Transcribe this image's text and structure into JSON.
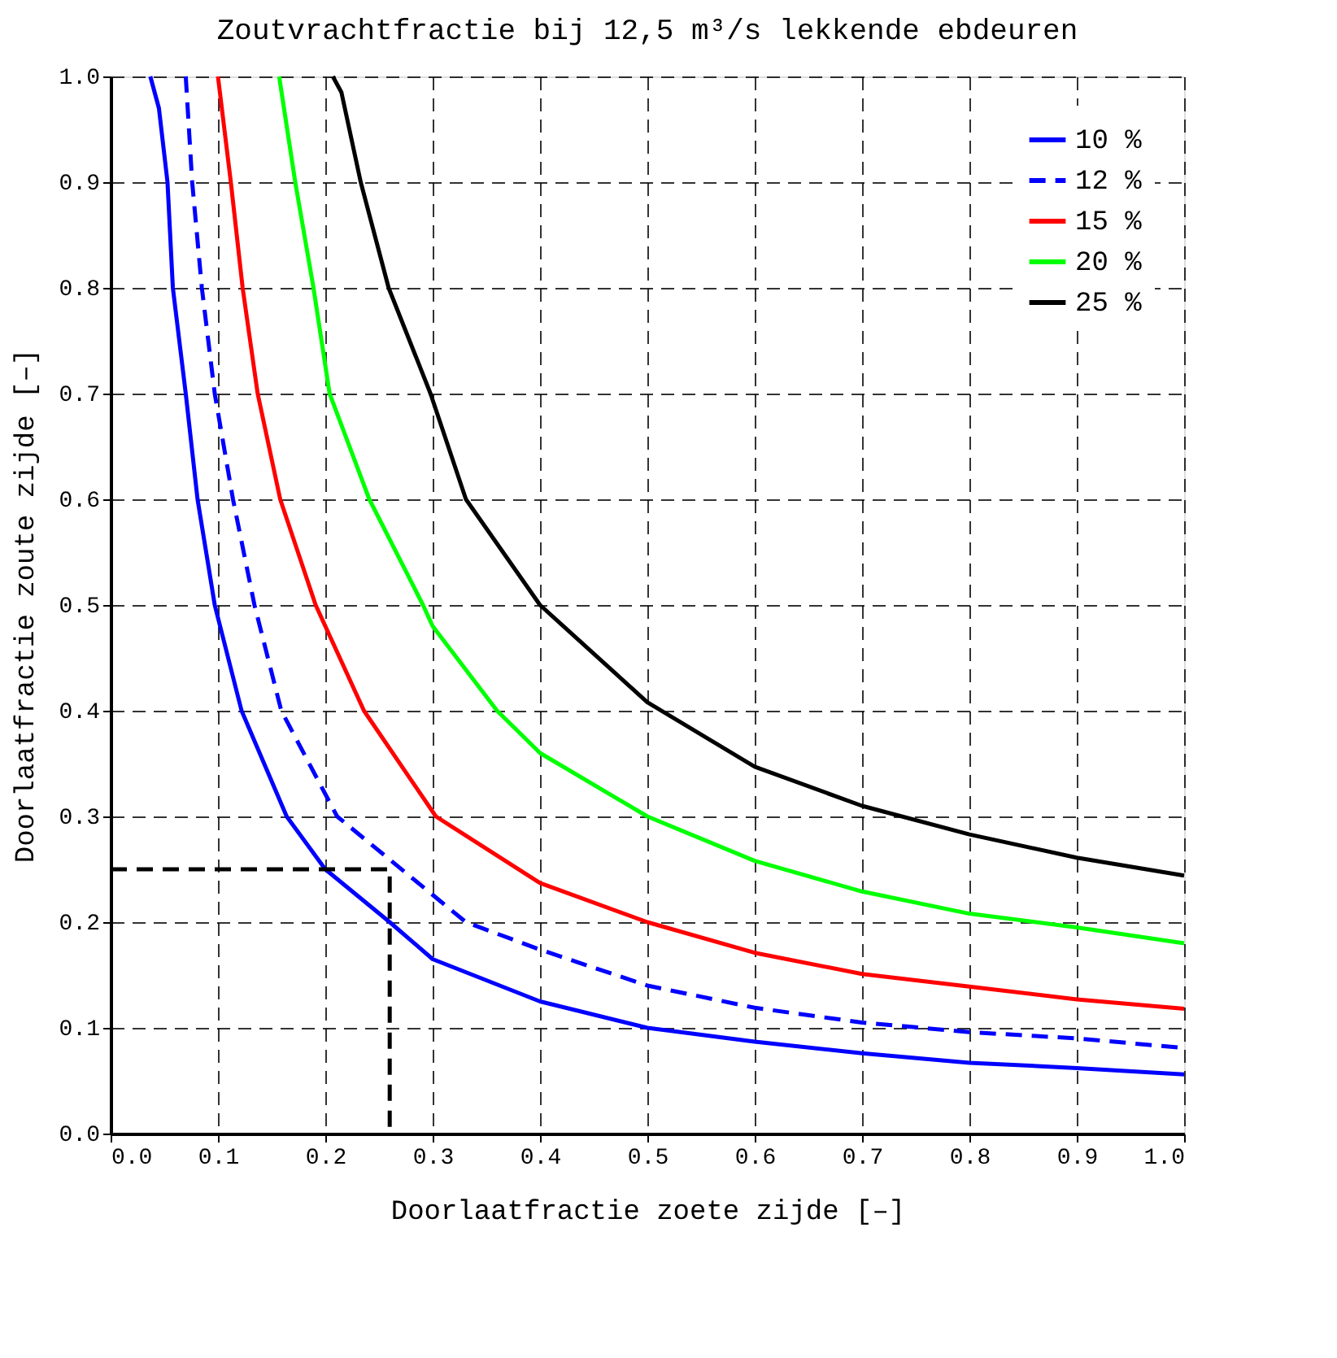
{
  "chart_data": {
    "type": "line",
    "title": "Zoutvrachtfractie bij 12,5 m³/s lekkende ebdeuren",
    "xlabel": "Doorlaatfractie zoete zijde [–]",
    "ylabel": "Doorlaatfractie zoute zijde [–]",
    "xlim": [
      0,
      1
    ],
    "ylim": [
      0,
      1
    ],
    "xticks": [
      {
        "value": 0,
        "label": "0.0"
      },
      0.1,
      0.2,
      0.3,
      0.4,
      0.5,
      0.6,
      0.7,
      0.8,
      0.9,
      {
        "value": 1,
        "label": "1.0"
      }
    ],
    "yticks": [
      {
        "value": 0,
        "label": "0.0"
      },
      0.1,
      0.2,
      0.3,
      0.4,
      0.5,
      0.6,
      0.7,
      0.8,
      0.9,
      {
        "value": 1,
        "label": "1.0"
      }
    ],
    "grid": true,
    "legend": "top right",
    "marker": "none",
    "series": [
      {
        "name": "10 %",
        "color": "#0000ff",
        "line_style": "solid",
        "x": [
          0.037,
          0.045,
          0.053,
          0.058,
          0.07,
          0.081,
          0.097,
          0.122,
          0.164,
          0.2,
          0.26,
          0.3,
          0.4,
          0.5,
          0.6,
          0.7,
          0.8,
          0.9,
          1.0
        ],
        "values": [
          1.0,
          0.97,
          0.9,
          0.8,
          0.7,
          0.6,
          0.5,
          0.4,
          0.3,
          0.25,
          0.2,
          0.165,
          0.125,
          0.1,
          0.087,
          0.076,
          0.067,
          0.062,
          0.056
        ]
      },
      {
        "name": "12 %",
        "color": "#0000ff",
        "line_style": "dashed",
        "x": [
          0.07,
          0.076,
          0.085,
          0.097,
          0.114,
          0.134,
          0.159,
          0.211,
          0.331,
          0.4,
          0.5,
          0.6,
          0.7,
          0.8,
          0.9,
          1.0
        ],
        "values": [
          1.0,
          0.9,
          0.8,
          0.7,
          0.6,
          0.5,
          0.4,
          0.3,
          0.2,
          0.174,
          0.14,
          0.119,
          0.105,
          0.096,
          0.09,
          0.081
        ]
      },
      {
        "name": "15 %",
        "color": "#ff0000",
        "line_style": "solid",
        "x": [
          0.1,
          0.112,
          0.123,
          0.137,
          0.158,
          0.191,
          0.236,
          0.303,
          0.4,
          0.5,
          0.6,
          0.7,
          0.8,
          0.9,
          1.0
        ],
        "values": [
          1.0,
          0.9,
          0.8,
          0.7,
          0.6,
          0.5,
          0.4,
          0.3,
          0.237,
          0.2,
          0.171,
          0.151,
          0.139,
          0.127,
          0.118
        ]
      },
      {
        "name": "20 %",
        "color": "#00ff00",
        "line_style": "solid",
        "x": [
          0.157,
          0.172,
          0.189,
          0.204,
          0.241,
          0.291,
          0.3,
          0.36,
          0.4,
          0.5,
          0.6,
          0.7,
          0.8,
          0.9,
          1.0
        ],
        "values": [
          1.0,
          0.9,
          0.8,
          0.7,
          0.6,
          0.5,
          0.48,
          0.4,
          0.36,
          0.3,
          0.258,
          0.229,
          0.208,
          0.195,
          0.18
        ]
      },
      {
        "name": "25 %",
        "color": "#000000",
        "line_style": "solid",
        "x": [
          0.207,
          0.215,
          0.233,
          0.259,
          0.298,
          0.331,
          0.4,
          0.5,
          0.6,
          0.7,
          0.8,
          0.9,
          1.0
        ],
        "values": [
          1.0,
          0.985,
          0.9,
          0.8,
          0.7,
          0.6,
          0.5,
          0.408,
          0.347,
          0.31,
          0.283,
          0.261,
          0.244
        ]
      },
      {
        "color": "#000000",
        "line_style": "dashed",
        "x": [
          0,
          0.26,
          0.26
        ],
        "values": [
          0.25,
          0.25,
          0
        ]
      }
    ]
  }
}
